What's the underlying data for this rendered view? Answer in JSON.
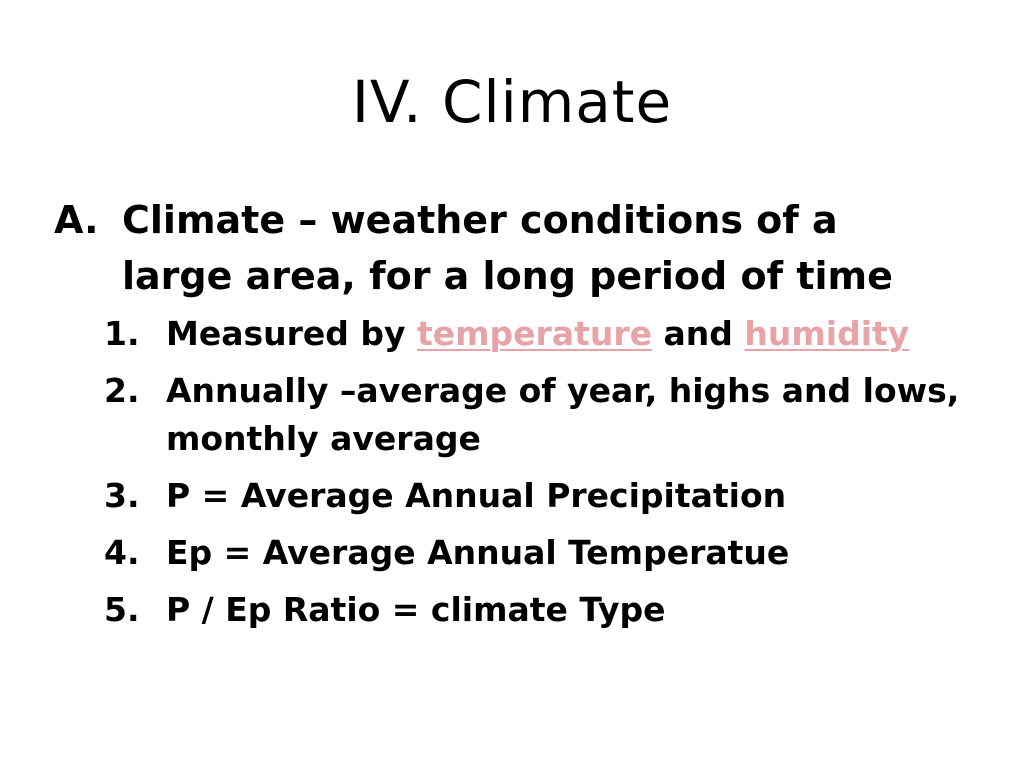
{
  "slide": {
    "title": "IV. Climate",
    "point_a": {
      "marker": "A.",
      "line1": "Climate – weather conditions of a",
      "line2": "large area, for a long period of time"
    },
    "sub_points": [
      {
        "marker": "1.",
        "prefix": "Measured by ",
        "link1": "temperature",
        "middle": " and ",
        "link2": "humidity"
      },
      {
        "marker": "2.",
        "text": "Annually –average of year, highs and lows, monthly average"
      },
      {
        "marker": "3.",
        "text": "P = Average Annual Precipitation"
      },
      {
        "marker": "4.",
        "text": "Ep = Average Annual Temperatue"
      },
      {
        "marker": "5.",
        "text": "P / Ep Ratio = climate Type"
      }
    ],
    "colors": {
      "link": "#e8a3a7",
      "text": "#000000",
      "background": "#ffffff"
    }
  }
}
